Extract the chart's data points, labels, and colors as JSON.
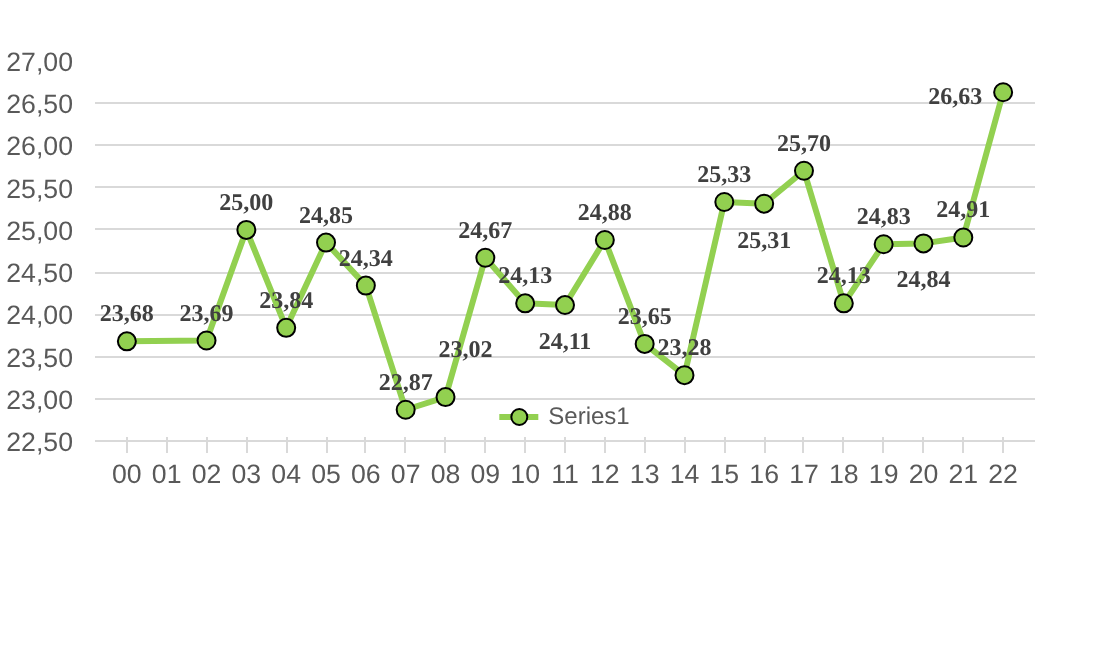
{
  "chart_data": {
    "type": "line",
    "categories": [
      "00",
      "01",
      "02",
      "03",
      "04",
      "05",
      "06",
      "07",
      "08",
      "09",
      "10",
      "11",
      "12",
      "13",
      "14",
      "15",
      "16",
      "17",
      "18",
      "19",
      "20",
      "21",
      "22"
    ],
    "series": [
      {
        "name": "Series1",
        "color": "#92d050",
        "values": [
          23.68,
          null,
          23.69,
          25.0,
          23.84,
          24.85,
          24.34,
          22.87,
          23.02,
          24.67,
          24.13,
          24.11,
          24.88,
          23.65,
          23.28,
          25.33,
          25.31,
          25.7,
          24.13,
          24.83,
          24.84,
          24.91,
          26.63
        ],
        "value_labels": [
          "23,68",
          null,
          "23,69",
          "25,00",
          "23,84",
          "24,85",
          "24,34",
          "22,87",
          "23,02",
          "24,67",
          "24,13",
          "24,11",
          "24,88",
          "23,65",
          "23,28",
          "25,33",
          "25,31",
          "25,70",
          "24,13",
          "24,83",
          "24,84",
          "24,91",
          "26,63"
        ]
      }
    ],
    "ylim": [
      22.5,
      27.0
    ],
    "yticks": [
      {
        "value": 22.5,
        "label": "22,50"
      },
      {
        "value": 23.0,
        "label": "23,00"
      },
      {
        "value": 23.5,
        "label": "23,50"
      },
      {
        "value": 24.0,
        "label": "24,00"
      },
      {
        "value": 24.5,
        "label": "24,50"
      },
      {
        "value": 25.0,
        "label": "25,00"
      },
      {
        "value": 25.5,
        "label": "25,50"
      },
      {
        "value": 26.0,
        "label": "26,00"
      },
      {
        "value": 26.5,
        "label": "26,50"
      },
      {
        "value": 27.0,
        "label": "27,00"
      }
    ],
    "grid": "y",
    "legend": "bottom",
    "marker": "circle",
    "line_style": "solid"
  }
}
